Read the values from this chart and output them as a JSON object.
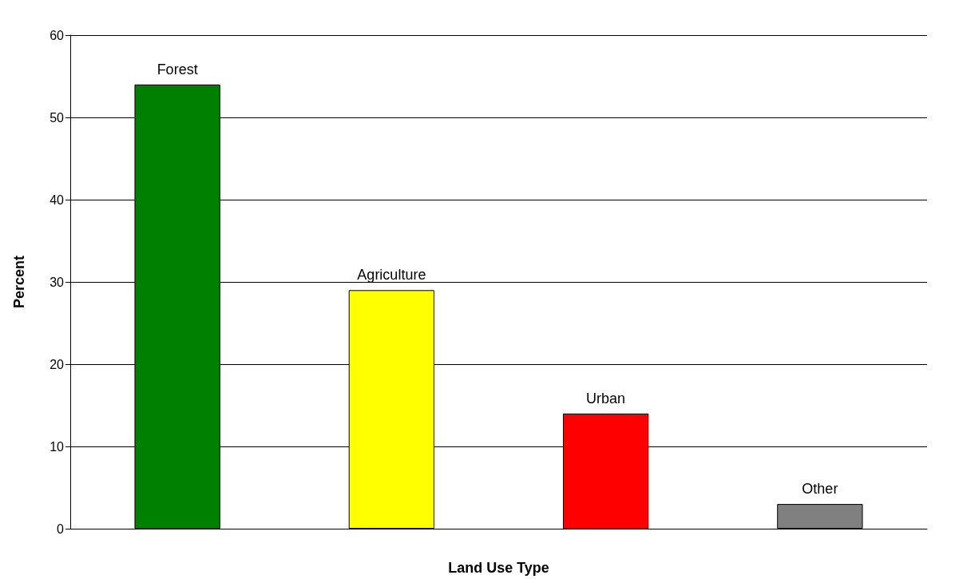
{
  "chart_data": {
    "type": "bar",
    "categories": [
      "Forest",
      "Agriculture",
      "Urban",
      "Other"
    ],
    "values": [
      54,
      29,
      14,
      3
    ],
    "colors": [
      "#008000",
      "#ffff00",
      "#ff0000",
      "#808080"
    ],
    "xlabel": "Land Use Type",
    "ylabel": "Percent",
    "ylim": [
      0,
      60
    ],
    "yticks": [
      0,
      10,
      20,
      30,
      40,
      50,
      60
    ],
    "grid": "y",
    "tick_labels": "y"
  }
}
